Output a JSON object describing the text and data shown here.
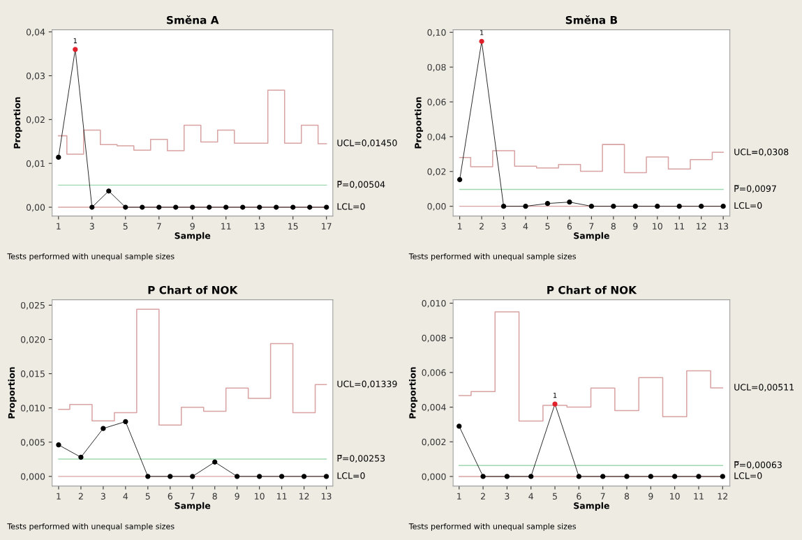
{
  "chart_data": [
    {
      "type": "line",
      "title": "Směna A",
      "xlabel": "Sample",
      "ylabel": "Proportion",
      "x": [
        1,
        2,
        3,
        4,
        5,
        6,
        7,
        8,
        9,
        10,
        11,
        12,
        13,
        14,
        15,
        16,
        17
      ],
      "xlim": [
        0.62,
        17.38
      ],
      "xticks": [
        1,
        3,
        5,
        7,
        9,
        11,
        13,
        15,
        17
      ],
      "ylim": [
        -0.002,
        0.0405
      ],
      "yticks": [
        {
          "value": 0,
          "label": "0,00"
        },
        {
          "value": 0.01,
          "label": "0,01"
        },
        {
          "value": 0.02,
          "label": "0,02"
        },
        {
          "value": 0.03,
          "label": "0,03"
        },
        {
          "value": 0.04,
          "label": "0,04"
        }
      ],
      "series": [
        {
          "type": "step",
          "color": "#d9a3a3",
          "marker": "none",
          "values": [
            0.0163,
            0.0121,
            0.0176,
            0.0143,
            0.014,
            0.013,
            0.0155,
            0.0129,
            0.0187,
            0.0149,
            0.0176,
            0.0146,
            0.0146,
            0.0267,
            0.0146,
            0.0187,
            0.0145
          ]
        },
        {
          "color": "#000000",
          "marker": "circle",
          "colors": [
            "#000000",
            "#e0202a",
            "#000000",
            "#000000",
            "#000000",
            "#000000",
            "#000000",
            "#000000",
            "#000000",
            "#000000",
            "#000000",
            "#000000",
            "#000000",
            "#000000",
            "#000000",
            "#000000",
            "#000000"
          ],
          "values": [
            0.0114,
            0.036,
            0,
            0.0037,
            0,
            0,
            0,
            0,
            0,
            0,
            0,
            0,
            0,
            0,
            0,
            0,
            0
          ]
        }
      ],
      "ref_lines": [
        {
          "axis": "y",
          "value": 0.00504,
          "label": "P̅=0,00504",
          "color": "#9fd8b0"
        },
        {
          "axis": "y",
          "value": 0,
          "label": "LCL=0",
          "color": "#d9a3a3"
        }
      ],
      "annotations": [
        {
          "text": "1",
          "x": 2,
          "y": 0.036
        },
        {
          "text": "UCL=0,01450",
          "x": 17,
          "y": 0.0145
        },
        "Tests performed with unequal sample sizes"
      ],
      "grid": false,
      "legend": false
    },
    {
      "type": "line",
      "title": "Směna B",
      "xlabel": "Sample",
      "ylabel": "Proportion",
      "x": [
        1,
        2,
        3,
        4,
        5,
        6,
        7,
        8,
        9,
        10,
        11,
        12,
        13
      ],
      "xlim": [
        0.7,
        13.3
      ],
      "xticks": [
        1,
        2,
        3,
        4,
        5,
        6,
        7,
        8,
        9,
        10,
        11,
        12,
        13
      ],
      "ylim": [
        -0.0056,
        0.1015
      ],
      "yticks": [
        {
          "value": 0,
          "label": "0,00"
        },
        {
          "value": 0.02,
          "label": "0,02"
        },
        {
          "value": 0.04,
          "label": "0,04"
        },
        {
          "value": 0.06,
          "label": "0,06"
        },
        {
          "value": 0.08,
          "label": "0,08"
        },
        {
          "value": 0.1,
          "label": "0,10"
        }
      ],
      "series": [
        {
          "type": "step",
          "color": "#d9a3a3",
          "marker": "none",
          "values": [
            0.028,
            0.0227,
            0.0319,
            0.023,
            0.022,
            0.024,
            0.0201,
            0.0355,
            0.0193,
            0.0283,
            0.0214,
            0.0268,
            0.031
          ]
        },
        {
          "color": "#000000",
          "marker": "circle",
          "colors": [
            "#000000",
            "#e0202a",
            "#000000",
            "#000000",
            "#000000",
            "#000000",
            "#000000",
            "#000000",
            "#000000",
            "#000000",
            "#000000",
            "#000000",
            "#000000"
          ],
          "values": [
            0.0153,
            0.0948,
            0,
            0,
            0.0016,
            0.0024,
            0,
            0,
            0,
            0,
            0,
            0,
            0
          ]
        }
      ],
      "ref_lines": [
        {
          "axis": "y",
          "value": 0.0097,
          "label": "P̅=0,0097",
          "color": "#9fd8b0"
        },
        {
          "axis": "y",
          "value": 0,
          "label": "LCL=0",
          "color": "#d9a3a3"
        }
      ],
      "annotations": [
        {
          "text": "1",
          "x": 2,
          "y": 0.0948
        },
        {
          "text": "UCL=0,0308",
          "x": 13,
          "y": 0.0308
        },
        "Tests performed with unequal sample sizes"
      ],
      "grid": false,
      "legend": false
    },
    {
      "type": "line",
      "title": "P Chart of NOK",
      "xlabel": "Sample",
      "ylabel": "Proportion",
      "x": [
        1,
        2,
        3,
        4,
        5,
        6,
        7,
        8,
        9,
        10,
        11,
        12,
        13
      ],
      "xlim": [
        0.71,
        13.29
      ],
      "xticks": [
        1,
        2,
        3,
        4,
        5,
        6,
        7,
        8,
        9,
        10,
        11,
        12,
        13
      ],
      "ylim": [
        -0.0014,
        0.0258
      ],
      "yticks": [
        {
          "value": 0,
          "label": "0,000"
        },
        {
          "value": 0.005,
          "label": "0,005"
        },
        {
          "value": 0.01,
          "label": "0,010"
        },
        {
          "value": 0.015,
          "label": "0,015"
        },
        {
          "value": 0.02,
          "label": "0,020"
        },
        {
          "value": 0.025,
          "label": "0,025"
        }
      ],
      "series": [
        {
          "type": "step",
          "color": "#d9a3a3",
          "marker": "none",
          "values": [
            0.0098,
            0.0105,
            0.0081,
            0.0093,
            0.0244,
            0.0075,
            0.0101,
            0.0095,
            0.0129,
            0.0114,
            0.0194,
            0.0093,
            0.0134
          ]
        },
        {
          "color": "#000000",
          "marker": "circle",
          "values": [
            0.0046,
            0.0028,
            0.007,
            0.008,
            0,
            0,
            0,
            0.0021,
            0,
            0,
            0,
            0,
            0
          ]
        }
      ],
      "ref_lines": [
        {
          "axis": "y",
          "value": 0.00253,
          "label": "P̅=0,00253",
          "color": "#9fd8b0"
        },
        {
          "axis": "y",
          "value": 0,
          "label": "LCL=0",
          "color": "#d9a3a3"
        }
      ],
      "annotations": [
        {
          "text": "UCL=0,01339",
          "x": 13,
          "y": 0.01339
        },
        "Tests performed with unequal sample sizes"
      ],
      "grid": false,
      "legend": false
    },
    {
      "type": "line",
      "title": "P Chart of NOK",
      "xlabel": "Sample",
      "ylabel": "Proportion",
      "x": [
        1,
        2,
        3,
        4,
        5,
        6,
        7,
        8,
        9,
        10,
        11,
        12
      ],
      "xlim": [
        0.75,
        12.3
      ],
      "xticks": [
        1,
        2,
        3,
        4,
        5,
        6,
        7,
        8,
        9,
        10,
        11,
        12
      ],
      "ylim": [
        -0.00055,
        0.0102
      ],
      "yticks": [
        {
          "value": 0,
          "label": "0,000"
        },
        {
          "value": 0.002,
          "label": "0,002"
        },
        {
          "value": 0.004,
          "label": "0,004"
        },
        {
          "value": 0.006,
          "label": "0,006"
        },
        {
          "value": 0.008,
          "label": "0,008"
        },
        {
          "value": 0.01,
          "label": "0,010"
        }
      ],
      "series": [
        {
          "type": "step",
          "color": "#d9a3a3",
          "marker": "none",
          "values": [
            0.00467,
            0.0049,
            0.0095,
            0.0032,
            0.0041,
            0.004,
            0.0051,
            0.0038,
            0.0057,
            0.00345,
            0.0061,
            0.00511
          ]
        },
        {
          "color": "#000000",
          "marker": "circle",
          "colors": [
            "#000000",
            "#000000",
            "#000000",
            "#000000",
            "#e0202a",
            "#000000",
            "#000000",
            "#000000",
            "#000000",
            "#000000",
            "#000000",
            "#000000"
          ],
          "values": [
            0.0029,
            0,
            0,
            0,
            0.00418,
            0,
            0,
            0,
            0,
            0,
            0,
            0
          ]
        }
      ],
      "ref_lines": [
        {
          "axis": "y",
          "value": 0.00063,
          "label": "P̅=0,00063",
          "color": "#9fd8b0"
        },
        {
          "axis": "y",
          "value": 0,
          "label": "LCL=0",
          "color": "#d9a3a3"
        }
      ],
      "annotations": [
        {
          "text": "1",
          "x": 5,
          "y": 0.00418
        },
        {
          "text": "UCL=0,00511",
          "x": 12,
          "y": 0.00511
        },
        "Tests performed with unequal sample sizes"
      ],
      "grid": false,
      "legend": false
    }
  ]
}
